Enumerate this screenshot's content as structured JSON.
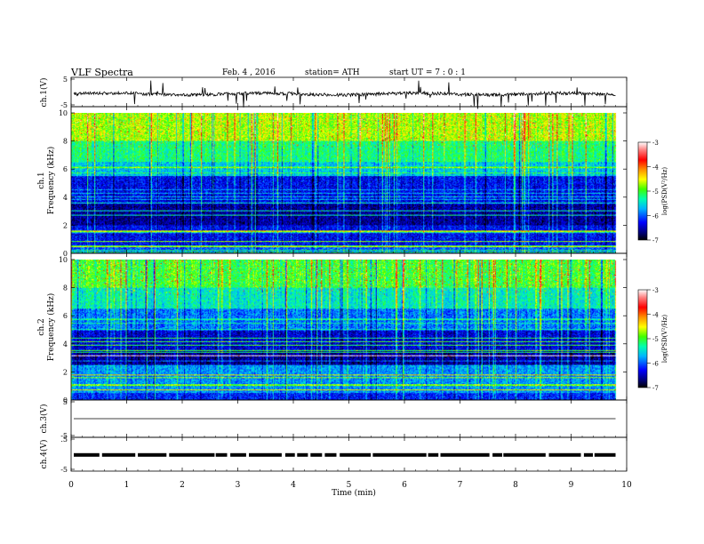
{
  "header": {
    "title": "VLF  Spectra",
    "date": "Feb. 4  , 2016",
    "station": "station= ATH",
    "start": "start  UT  =    7  : 0  : 1"
  },
  "chart_data": {
    "type": "heatmap",
    "x_axis": {
      "label": "Time  (min)",
      "range": [
        0,
        10
      ],
      "ticks": [
        "0",
        "1",
        "2",
        "3",
        "4",
        "5",
        "6",
        "7",
        "8",
        "9",
        "10"
      ]
    },
    "panels": [
      {
        "kind": "waveform",
        "ylabel": "ch.1(V)",
        "ylim": [
          -5,
          5
        ],
        "ticks": [
          "5",
          "-5"
        ],
        "baseline": -0.7
      },
      {
        "kind": "spectrogram",
        "ylabel_channel": "ch.1",
        "ylabel": "Frequency  (kHz)",
        "ylim": [
          0,
          10
        ],
        "ticks": [
          "0",
          "2",
          "4",
          "6",
          "8",
          "10"
        ],
        "colorbar": {
          "label": "log(PSD(V²/Hz)",
          "range": [
            -7,
            -3
          ],
          "ticks": [
            "-3",
            "-4",
            "-5",
            "-6",
            "-7"
          ]
        },
        "levels": [
          {
            "f_range": [
              0,
              0.5
            ],
            "value": -6.0
          },
          {
            "f_range": [
              0.5,
              2
            ],
            "value": -6.3
          },
          {
            "f_range": [
              2,
              3.5
            ],
            "value": -6.6
          },
          {
            "f_range": [
              3.5,
              5.5
            ],
            "value": -6.3
          },
          {
            "f_range": [
              5.5,
              6.5
            ],
            "value": -5.6
          },
          {
            "f_range": [
              6.5,
              8
            ],
            "value": -5.2
          },
          {
            "f_range": [
              8,
              10
            ],
            "value": -4.7
          }
        ]
      },
      {
        "kind": "spectrogram",
        "ylabel_channel": "ch.2",
        "ylabel": "Frequency  (kHz)",
        "ylim": [
          0,
          10
        ],
        "ticks": [
          "0",
          "2",
          "4",
          "6",
          "8",
          "10"
        ],
        "colorbar": {
          "label": "log(PSD(V²/Hz)",
          "range": [
            -7,
            -3
          ],
          "ticks": [
            "-3",
            "-4",
            "-5",
            "-6",
            "-7"
          ]
        },
        "levels": [
          {
            "f_range": [
              0,
              0.5
            ],
            "value": -6.2
          },
          {
            "f_range": [
              0.5,
              2.5
            ],
            "value": -5.8
          },
          {
            "f_range": [
              2.5,
              3.5
            ],
            "value": -6.6
          },
          {
            "f_range": [
              3.5,
              5
            ],
            "value": -6.4
          },
          {
            "f_range": [
              5,
              6.5
            ],
            "value": -5.9
          },
          {
            "f_range": [
              6.5,
              8
            ],
            "value": -5.4
          },
          {
            "f_range": [
              8,
              10
            ],
            "value": -5.0
          }
        ]
      },
      {
        "kind": "waveform",
        "ylabel": "ch.3(V)",
        "ylim": [
          -5,
          5
        ],
        "ticks": [
          "5",
          "-5"
        ],
        "baseline": 0
      },
      {
        "kind": "waveform",
        "ylabel": "ch.4(V)",
        "ylim": [
          -5,
          5
        ],
        "ticks": [
          ".5",
          "-5"
        ],
        "baseline": -0.2
      }
    ],
    "data_end_min": 9.8
  }
}
